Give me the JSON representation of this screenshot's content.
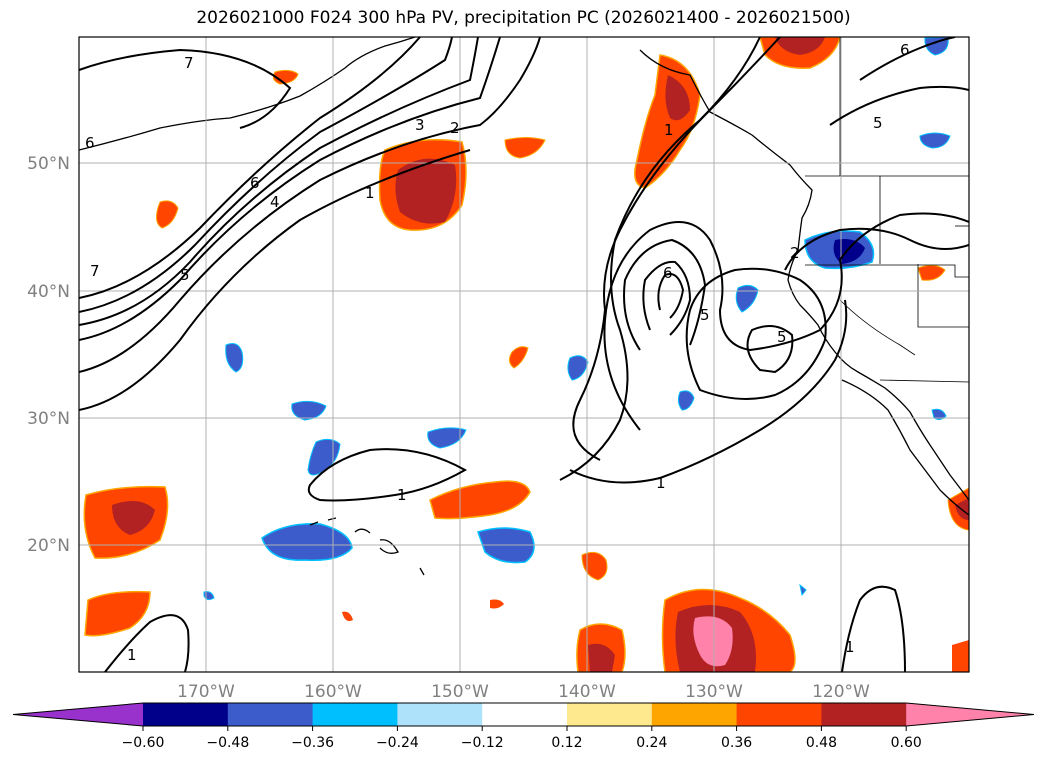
{
  "title": "2026021000 F024 300 hPa PV, precipitation PC (2026021400 - 2026021500)",
  "lat_labels": [
    "50°N",
    "40°N",
    "30°N",
    "20°N"
  ],
  "lon_labels": [
    "170°W",
    "160°W",
    "150°W",
    "140°W",
    "130°W",
    "120°W"
  ],
  "colorbar": {
    "ticks": [
      "−0.60",
      "−0.48",
      "−0.36",
      "−0.24",
      "−0.12",
      "0.12",
      "0.24",
      "0.36",
      "0.48",
      "0.60"
    ],
    "colors": [
      "#9932cc",
      "#00008b",
      "#3c5ccc",
      "#00bfff",
      "#ade2fa",
      "#ffffff",
      "#ffe98e",
      "#ffa500",
      "#ff4500",
      "#b22222",
      "#ff82ab"
    ]
  },
  "contour_labels": [
    "7",
    "6",
    "2",
    "3",
    "1",
    "6",
    "4",
    "5",
    "7",
    "6",
    "5",
    "5",
    "2",
    "6",
    "5",
    "1",
    "1",
    "1",
    "1",
    "1"
  ],
  "colors": {
    "coast": "#000000",
    "grid": "#b0b0b0",
    "contour": "#000000"
  }
}
